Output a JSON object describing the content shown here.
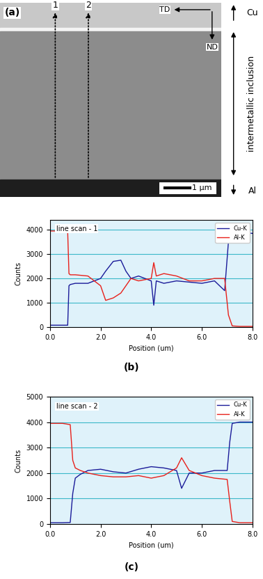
{
  "image": {
    "panel_label": "(a)",
    "line_labels": [
      "1",
      "2"
    ],
    "directions": [
      "TD",
      "ND"
    ],
    "regions": [
      "Cu",
      "intermetallic inclusion",
      "Al"
    ],
    "scale_bar": "1 µm"
  },
  "chart_data": [
    {
      "type": "line",
      "annotations": [
        "line scan - 1",
        "(b)"
      ],
      "x_label": "Position (um)",
      "y_label": "Counts",
      "x": [
        0,
        0.5,
        0.7,
        0.75,
        0.8,
        1.0,
        1.5,
        2.0,
        2.2,
        2.5,
        2.8,
        3.0,
        3.2,
        3.5,
        4.0,
        4.1,
        4.2,
        4.5,
        5.0,
        5.5,
        6.0,
        6.5,
        6.9,
        7.05,
        7.2,
        7.5,
        8.0
      ],
      "series": [
        {
          "name": "Cu-K",
          "color": "#1a1a99",
          "values": [
            80,
            80,
            80,
            1700,
            1750,
            1800,
            1800,
            2000,
            2300,
            2700,
            2750,
            2300,
            2000,
            2100,
            1900,
            900,
            1900,
            1800,
            1900,
            1850,
            1800,
            1900,
            1500,
            3500,
            3850,
            3900,
            3850
          ]
        },
        {
          "name": "Al-K",
          "color": "#e8201a",
          "values": [
            3950,
            3950,
            3900,
            2200,
            2150,
            2150,
            2100,
            1700,
            1100,
            1200,
            1400,
            1700,
            2000,
            1900,
            2000,
            2650,
            2100,
            2200,
            2100,
            1900,
            1900,
            2000,
            2000,
            500,
            50,
            30,
            30
          ]
        }
      ],
      "xlim": [
        0,
        8
      ],
      "xticks": [
        {
          "value": 0,
          "label": "0.0"
        },
        {
          "value": 2,
          "label": "2.0"
        },
        {
          "value": 4,
          "label": "4.0"
        },
        {
          "value": 6,
          "label": "6.0"
        },
        {
          "value": 8,
          "label": "8.0"
        }
      ],
      "ylim": [
        0,
        4400
      ],
      "yticks": [
        0,
        1000,
        2000,
        3000,
        4000
      ],
      "grid": true,
      "legend": "upper right"
    },
    {
      "type": "line",
      "annotations": [
        "line scan - 2",
        "(c)"
      ],
      "x_label": "Position (um)",
      "y_label": "Counts",
      "x": [
        0,
        0.5,
        0.8,
        0.9,
        1.0,
        1.2,
        1.5,
        2.0,
        2.5,
        3.0,
        3.5,
        4.0,
        4.5,
        5.0,
        5.2,
        5.5,
        6.0,
        6.5,
        7.0,
        7.1,
        7.2,
        7.5,
        8.0
      ],
      "series": [
        {
          "name": "Cu-K",
          "color": "#1a1a99",
          "values": [
            50,
            50,
            60,
            1200,
            1800,
            1950,
            2100,
            2150,
            2050,
            2000,
            2150,
            2250,
            2200,
            2100,
            1400,
            2000,
            2000,
            2100,
            2100,
            3200,
            3950,
            4000,
            4000
          ]
        },
        {
          "name": "Al-K",
          "color": "#e8201a",
          "values": [
            3950,
            3950,
            3900,
            2500,
            2200,
            2100,
            2000,
            1900,
            1850,
            1850,
            1900,
            1800,
            1900,
            2200,
            2600,
            2100,
            1900,
            1800,
            1750,
            900,
            100,
            50,
            50
          ]
        }
      ],
      "xlim": [
        0,
        8
      ],
      "xticks": [
        {
          "value": 0,
          "label": "0.0"
        },
        {
          "value": 2,
          "label": "2.0"
        },
        {
          "value": 4,
          "label": "4.0"
        },
        {
          "value": 6,
          "label": "6.0"
        },
        {
          "value": 8,
          "label": "8.0"
        }
      ],
      "ylim": [
        0,
        5000
      ],
      "yticks": [
        0,
        1000,
        2000,
        3000,
        4000,
        5000
      ],
      "grid": true,
      "legend": "upper right"
    }
  ]
}
